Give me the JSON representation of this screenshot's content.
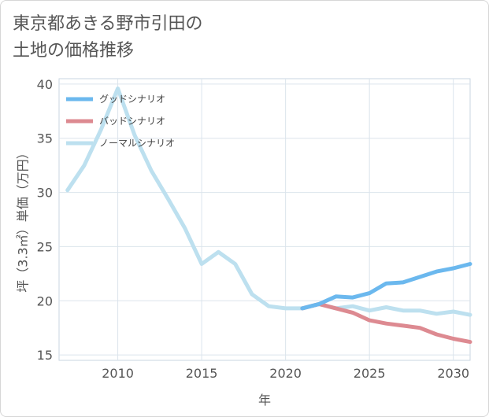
{
  "title_line1": "東京都あきる野市引田の",
  "title_line2": "土地の価格推移",
  "chart_data": {
    "type": "line",
    "xlabel": "年",
    "ylabel": "坪（3.3㎡）単価（万円）",
    "xlim": [
      2006.5,
      2031
    ],
    "ylim": [
      14.5,
      40.5
    ],
    "xticks": [
      2010,
      2015,
      2020,
      2025,
      2030
    ],
    "yticks": [
      15,
      20,
      25,
      30,
      35,
      40
    ],
    "grid": true,
    "legend_position": "top-left",
    "series": [
      {
        "name": "グッドシナリオ",
        "color": "#6bb8ee",
        "x": [
          2021,
          2022,
          2023,
          2024,
          2025,
          2026,
          2027,
          2028,
          2029,
          2030,
          2031
        ],
        "y": [
          19.3,
          19.7,
          20.4,
          20.3,
          20.7,
          21.6,
          21.7,
          22.2,
          22.7,
          23.0,
          23.4
        ]
      },
      {
        "name": "バッドシナリオ",
        "color": "#dd8a91",
        "x": [
          2021,
          2022,
          2023,
          2024,
          2025,
          2026,
          2027,
          2028,
          2029,
          2030,
          2031
        ],
        "y": [
          19.3,
          19.7,
          19.3,
          18.9,
          18.2,
          17.9,
          17.7,
          17.5,
          16.9,
          16.5,
          16.2
        ]
      },
      {
        "name": "ノーマルシナリオ",
        "color": "#bde0ef",
        "x": [
          2007,
          2008,
          2009,
          2010,
          2011,
          2012,
          2013,
          2014,
          2015,
          2016,
          2017,
          2018,
          2019,
          2020,
          2021,
          2022,
          2023,
          2024,
          2025,
          2026,
          2027,
          2028,
          2029,
          2030,
          2031
        ],
        "y": [
          30.2,
          32.5,
          35.8,
          39.6,
          35.3,
          32.0,
          29.4,
          26.7,
          23.4,
          24.5,
          23.4,
          20.6,
          19.5,
          19.3,
          19.3,
          19.7,
          19.3,
          19.5,
          19.1,
          19.4,
          19.1,
          19.1,
          18.8,
          19.0,
          18.7
        ]
      }
    ]
  }
}
